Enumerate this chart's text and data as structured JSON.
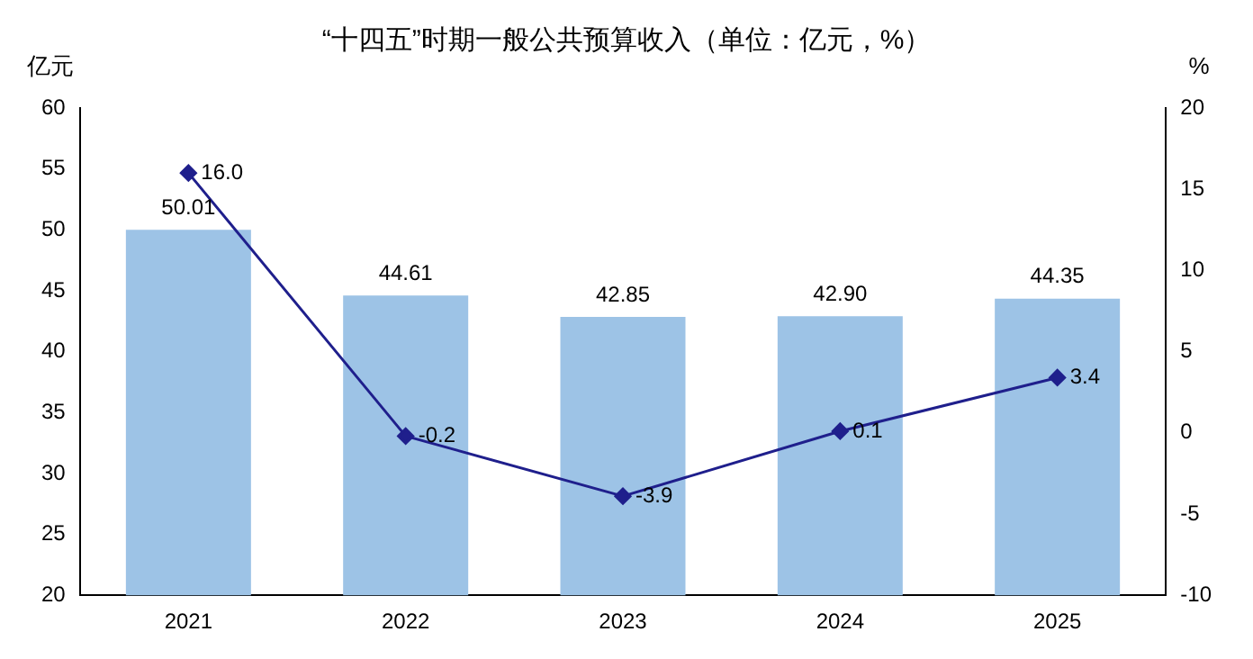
{
  "chart_data": {
    "type": "bar",
    "title": "“十四五”时期一般公共预算收入（单位：亿元，%）",
    "ylabel": "亿元",
    "y2label": "%",
    "categories": [
      "2021",
      "2022",
      "2023",
      "2024",
      "2025"
    ],
    "series": [
      {
        "color": "#9dc3e6",
        "values": [
          50.01,
          44.61,
          42.85,
          42.9,
          44.35
        ],
        "value_labels": [
          "50.01",
          "44.61",
          "42.85",
          "42.90",
          "44.35"
        ]
      },
      {
        "type": "line",
        "axis": "y2",
        "color": "#1f1f8c",
        "marker": "diamond",
        "line_style": "solid",
        "values": [
          16.0,
          -0.2,
          -3.9,
          0.1,
          3.4
        ],
        "value_labels": [
          "16.0",
          "-0.2",
          "-3.9",
          "0.1",
          "3.4"
        ]
      }
    ],
    "ylim": [
      20,
      60
    ],
    "yticks": [
      20,
      25,
      30,
      35,
      40,
      45,
      50,
      55,
      60
    ],
    "y2lim": [
      -10,
      20
    ],
    "y2ticks": [
      -10,
      -5,
      0,
      5,
      10,
      15,
      20
    ],
    "grid": false,
    "legend": false
  }
}
